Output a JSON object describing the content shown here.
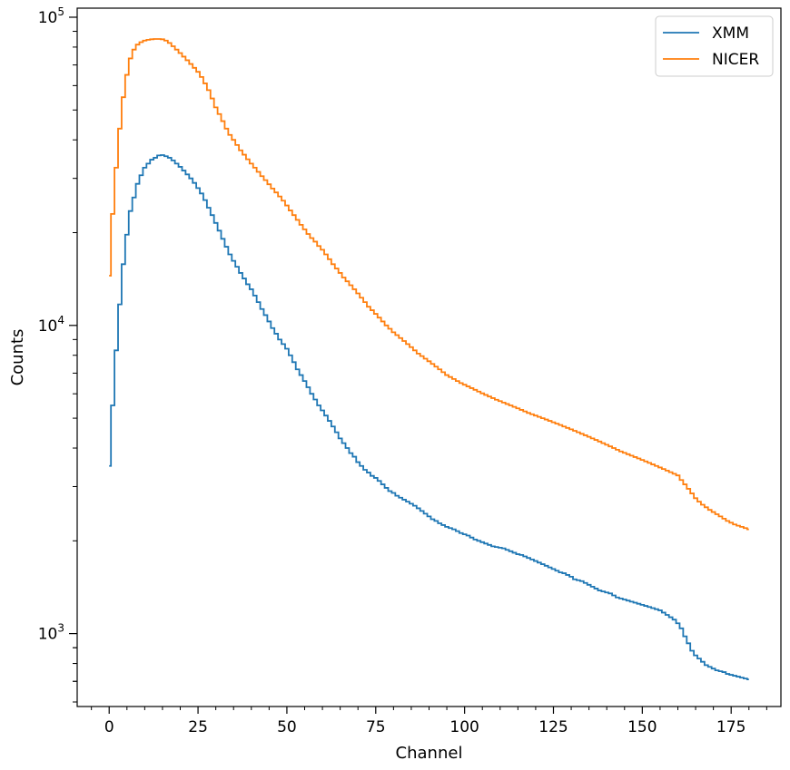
{
  "chart_data": {
    "type": "line",
    "style": "step",
    "xlabel": "Channel",
    "ylabel": "Counts",
    "yscale": "log",
    "xlim": [
      -9,
      189
    ],
    "ylim": [
      580,
      107000
    ],
    "xticks": [
      0,
      25,
      50,
      75,
      100,
      125,
      150,
      175
    ],
    "yticks": [
      {
        "value": 1000,
        "base": "10",
        "exp": "3"
      },
      {
        "value": 10000,
        "base": "10",
        "exp": "4"
      },
      {
        "value": 100000,
        "base": "10",
        "exp": "5"
      }
    ],
    "legend": {
      "position": "top-right"
    },
    "series": [
      {
        "name": "XMM",
        "color": "#1f77b4",
        "x": [
          0,
          1,
          2,
          3,
          4,
          5,
          6,
          7,
          8,
          9,
          10,
          11,
          12,
          13,
          14,
          15,
          16,
          17,
          18,
          19,
          20,
          21,
          22,
          23,
          24,
          25,
          26,
          27,
          28,
          29,
          30,
          31,
          32,
          33,
          34,
          35,
          36,
          37,
          38,
          39,
          40,
          41,
          42,
          43,
          44,
          45,
          46,
          47,
          48,
          49,
          50,
          51,
          52,
          53,
          54,
          55,
          56,
          57,
          58,
          59,
          60,
          61,
          62,
          63,
          64,
          65,
          66,
          67,
          68,
          69,
          70,
          71,
          72,
          73,
          74,
          75,
          76,
          77,
          78,
          79,
          80,
          81,
          82,
          83,
          84,
          85,
          86,
          87,
          88,
          89,
          90,
          91,
          92,
          93,
          94,
          95,
          96,
          97,
          98,
          99,
          100,
          101,
          102,
          103,
          104,
          105,
          106,
          107,
          108,
          109,
          110,
          111,
          112,
          113,
          114,
          115,
          116,
          117,
          118,
          119,
          120,
          121,
          122,
          123,
          124,
          125,
          126,
          127,
          128,
          129,
          130,
          131,
          132,
          133,
          134,
          135,
          136,
          137,
          138,
          139,
          140,
          141,
          142,
          143,
          144,
          145,
          146,
          147,
          148,
          149,
          150,
          151,
          152,
          153,
          154,
          155,
          156,
          157,
          158,
          159,
          160,
          161,
          162,
          163,
          164,
          165,
          166,
          167,
          168,
          169,
          170,
          171,
          172,
          173,
          174,
          175,
          176,
          177,
          178,
          179,
          180
        ],
        "values": [
          3500,
          5500,
          8300,
          11700,
          15800,
          19700,
          23500,
          26000,
          28800,
          30700,
          32500,
          33500,
          34500,
          35000,
          35600,
          35700,
          35400,
          35000,
          34300,
          33500,
          32700,
          31800,
          30900,
          30000,
          29000,
          27900,
          26800,
          25500,
          24100,
          22800,
          21500,
          20300,
          19100,
          18000,
          17000,
          16200,
          15500,
          14800,
          14200,
          13600,
          13100,
          12500,
          11900,
          11300,
          10800,
          10300,
          9800,
          9400,
          9000,
          8700,
          8400,
          8000,
          7600,
          7200,
          6900,
          6600,
          6300,
          6000,
          5750,
          5500,
          5300,
          5100,
          4900,
          4700,
          4500,
          4300,
          4150,
          4000,
          3850,
          3750,
          3600,
          3500,
          3400,
          3330,
          3250,
          3200,
          3130,
          3050,
          2970,
          2900,
          2860,
          2800,
          2760,
          2720,
          2680,
          2640,
          2600,
          2550,
          2500,
          2450,
          2400,
          2350,
          2320,
          2280,
          2250,
          2220,
          2200,
          2180,
          2150,
          2120,
          2100,
          2080,
          2050,
          2020,
          2000,
          1980,
          1960,
          1940,
          1920,
          1910,
          1900,
          1890,
          1870,
          1850,
          1830,
          1810,
          1800,
          1780,
          1760,
          1740,
          1720,
          1700,
          1680,
          1660,
          1640,
          1620,
          1600,
          1580,
          1570,
          1550,
          1530,
          1500,
          1490,
          1480,
          1460,
          1440,
          1420,
          1400,
          1380,
          1370,
          1360,
          1350,
          1330,
          1310,
          1300,
          1290,
          1280,
          1270,
          1260,
          1250,
          1240,
          1230,
          1220,
          1210,
          1200,
          1190,
          1170,
          1150,
          1130,
          1110,
          1080,
          1040,
          980,
          930,
          880,
          850,
          830,
          810,
          790,
          780,
          770,
          760,
          755,
          750,
          740,
          735,
          730,
          725,
          720,
          715,
          710
        ]
      },
      {
        "name": "NICER",
        "color": "#ff7f0e",
        "x": [
          0,
          1,
          2,
          3,
          4,
          5,
          6,
          7,
          8,
          9,
          10,
          11,
          12,
          13,
          14,
          15,
          16,
          17,
          18,
          19,
          20,
          21,
          22,
          23,
          24,
          25,
          26,
          27,
          28,
          29,
          30,
          31,
          32,
          33,
          34,
          35,
          36,
          37,
          38,
          39,
          40,
          41,
          42,
          43,
          44,
          45,
          46,
          47,
          48,
          49,
          50,
          51,
          52,
          53,
          54,
          55,
          56,
          57,
          58,
          59,
          60,
          61,
          62,
          63,
          64,
          65,
          66,
          67,
          68,
          69,
          70,
          71,
          72,
          73,
          74,
          75,
          76,
          77,
          78,
          79,
          80,
          81,
          82,
          83,
          84,
          85,
          86,
          87,
          88,
          89,
          90,
          91,
          92,
          93,
          94,
          95,
          96,
          97,
          98,
          99,
          100,
          101,
          102,
          103,
          104,
          105,
          106,
          107,
          108,
          109,
          110,
          111,
          112,
          113,
          114,
          115,
          116,
          117,
          118,
          119,
          120,
          121,
          122,
          123,
          124,
          125,
          126,
          127,
          128,
          129,
          130,
          131,
          132,
          133,
          134,
          135,
          136,
          137,
          138,
          139,
          140,
          141,
          142,
          143,
          144,
          145,
          146,
          147,
          148,
          149,
          150,
          151,
          152,
          153,
          154,
          155,
          156,
          157,
          158,
          159,
          160,
          161,
          162,
          163,
          164,
          165,
          166,
          167,
          168,
          169,
          170,
          171,
          172,
          173,
          174,
          175,
          176,
          177,
          178,
          179,
          180
        ],
        "values": [
          14500,
          23000,
          32500,
          43500,
          55000,
          65000,
          73500,
          78500,
          81500,
          83000,
          84000,
          84500,
          84800,
          85000,
          85000,
          84800,
          84000,
          82500,
          80500,
          78500,
          76500,
          74500,
          72500,
          70500,
          68500,
          66500,
          64000,
          61000,
          58000,
          54500,
          51000,
          48500,
          46000,
          43500,
          41500,
          40000,
          38500,
          37000,
          35800,
          34600,
          33500,
          32500,
          31500,
          30500,
          29600,
          28700,
          27800,
          27000,
          26200,
          25400,
          24500,
          23600,
          22800,
          22000,
          21200,
          20500,
          19800,
          19200,
          18700,
          18100,
          17600,
          17000,
          16400,
          15800,
          15300,
          14800,
          14300,
          13900,
          13500,
          13100,
          12700,
          12300,
          11900,
          11500,
          11200,
          10900,
          10600,
          10300,
          10000,
          9750,
          9500,
          9300,
          9100,
          8900,
          8700,
          8500,
          8300,
          8100,
          7950,
          7800,
          7650,
          7500,
          7350,
          7200,
          7050,
          6900,
          6800,
          6700,
          6600,
          6500,
          6420,
          6340,
          6260,
          6180,
          6100,
          6020,
          5950,
          5880,
          5810,
          5740,
          5680,
          5620,
          5560,
          5500,
          5440,
          5380,
          5320,
          5260,
          5200,
          5150,
          5100,
          5050,
          5000,
          4950,
          4900,
          4850,
          4800,
          4750,
          4700,
          4650,
          4600,
          4550,
          4500,
          4450,
          4400,
          4350,
          4300,
          4250,
          4200,
          4150,
          4100,
          4050,
          4000,
          3950,
          3900,
          3860,
          3820,
          3780,
          3740,
          3700,
          3660,
          3620,
          3580,
          3540,
          3500,
          3460,
          3420,
          3380,
          3340,
          3300,
          3260,
          3150,
          3050,
          2950,
          2850,
          2750,
          2680,
          2620,
          2570,
          2520,
          2480,
          2440,
          2400,
          2360,
          2320,
          2290,
          2260,
          2240,
          2220,
          2200,
          2180
        ]
      }
    ]
  }
}
